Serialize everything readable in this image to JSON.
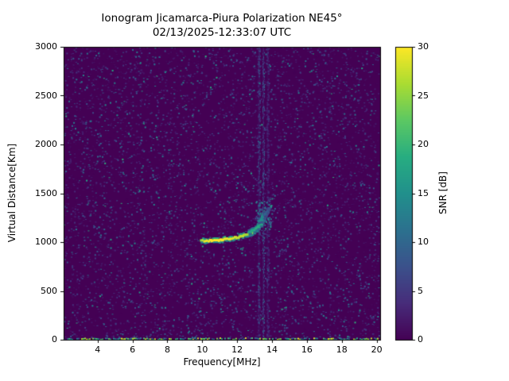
{
  "chart_data": {
    "type": "heatmap",
    "title": "Ionogram Jicamarca-Piura Polarization NE45°",
    "subtitle": "02/13/2025-12:33:07 UTC",
    "xlabel": "Frequency[MHz]",
    "ylabel": "Virtual Distance[Km]",
    "colorbar_label": "SNR [dB]",
    "xlim": [
      2.05,
      20.2
    ],
    "ylim": [
      0,
      3000
    ],
    "clim": [
      0,
      30
    ],
    "xticks": [
      4,
      6,
      8,
      10,
      12,
      14,
      16,
      18,
      20
    ],
    "yticks": [
      0,
      500,
      1000,
      1500,
      2000,
      2500,
      3000
    ],
    "colorbar_ticks": [
      0,
      5,
      10,
      15,
      20,
      25,
      30
    ],
    "colormap": "viridis",
    "grid": false,
    "legend": "colorbar-right",
    "colors": {
      "background_snr0": "#440154",
      "viridis_anchors": [
        "#440154",
        "#472c7a",
        "#3b518b",
        "#2c718e",
        "#21908c",
        "#27ad81",
        "#5cc863",
        "#aadc32",
        "#fde725"
      ]
    },
    "echo_traces": [
      {
        "name": "main-f-trace",
        "points": [
          [
            9.95,
            1020,
            24
          ],
          [
            10.15,
            1018,
            29
          ],
          [
            10.4,
            1018,
            30
          ],
          [
            10.65,
            1021,
            30
          ],
          [
            10.9,
            1024,
            30
          ],
          [
            11.15,
            1028,
            30
          ],
          [
            11.4,
            1034,
            29
          ],
          [
            11.65,
            1041,
            29
          ],
          [
            11.9,
            1049,
            28
          ],
          [
            12.15,
            1059,
            27
          ],
          [
            12.4,
            1070,
            27
          ],
          [
            12.6,
            1082,
            26
          ],
          [
            12.8,
            1097,
            25
          ],
          [
            12.95,
            1112,
            24
          ],
          [
            13.1,
            1133,
            23
          ],
          [
            13.22,
            1158,
            22
          ],
          [
            13.32,
            1186,
            21
          ],
          [
            13.4,
            1218,
            20
          ],
          [
            13.46,
            1252,
            18
          ],
          [
            13.5,
            1288,
            16
          ]
        ]
      },
      {
        "name": "x-mode-trace",
        "points": [
          [
            12.7,
            1105,
            17
          ],
          [
            12.9,
            1120,
            18
          ],
          [
            13.1,
            1140,
            19
          ],
          [
            13.25,
            1163,
            19
          ],
          [
            13.4,
            1192,
            18
          ],
          [
            13.52,
            1228,
            17
          ],
          [
            13.6,
            1266,
            15
          ],
          [
            13.66,
            1305,
            13
          ]
        ]
      },
      {
        "name": "second-cusp-trace",
        "points": [
          [
            13.25,
            1210,
            13
          ],
          [
            13.4,
            1232,
            15
          ],
          [
            13.53,
            1258,
            14
          ],
          [
            13.64,
            1290,
            12
          ],
          [
            13.73,
            1322,
            10
          ]
        ]
      },
      {
        "name": "upper-faint-trace",
        "points": [
          [
            13.55,
            1275,
            9
          ],
          [
            13.68,
            1300,
            10
          ],
          [
            13.8,
            1330,
            8
          ],
          [
            13.88,
            1355,
            6
          ]
        ]
      }
    ],
    "cusp_scatter": {
      "count": 70,
      "freq_range": [
        13.05,
        14.0
      ],
      "height_range": [
        1130,
        1430
      ],
      "snr_range": [
        6,
        17
      ]
    },
    "rfi_stripes": [
      {
        "freq_mhz": 13.25,
        "strength": 0.18
      },
      {
        "freq_mhz": 13.5,
        "strength": 0.22
      },
      {
        "freq_mhz": 13.75,
        "strength": 0.12
      }
    ],
    "baseline_echo": {
      "height_km": 0,
      "freq_range": [
        2.05,
        20.2
      ],
      "snr_range_db": [
        5,
        30
      ],
      "coverage": 0.8
    },
    "noise": {
      "speckle_count": 7000,
      "seed": 42,
      "typical_snr_range_db": [
        0,
        8
      ],
      "bright_speckle_fraction": 0.05
    }
  }
}
